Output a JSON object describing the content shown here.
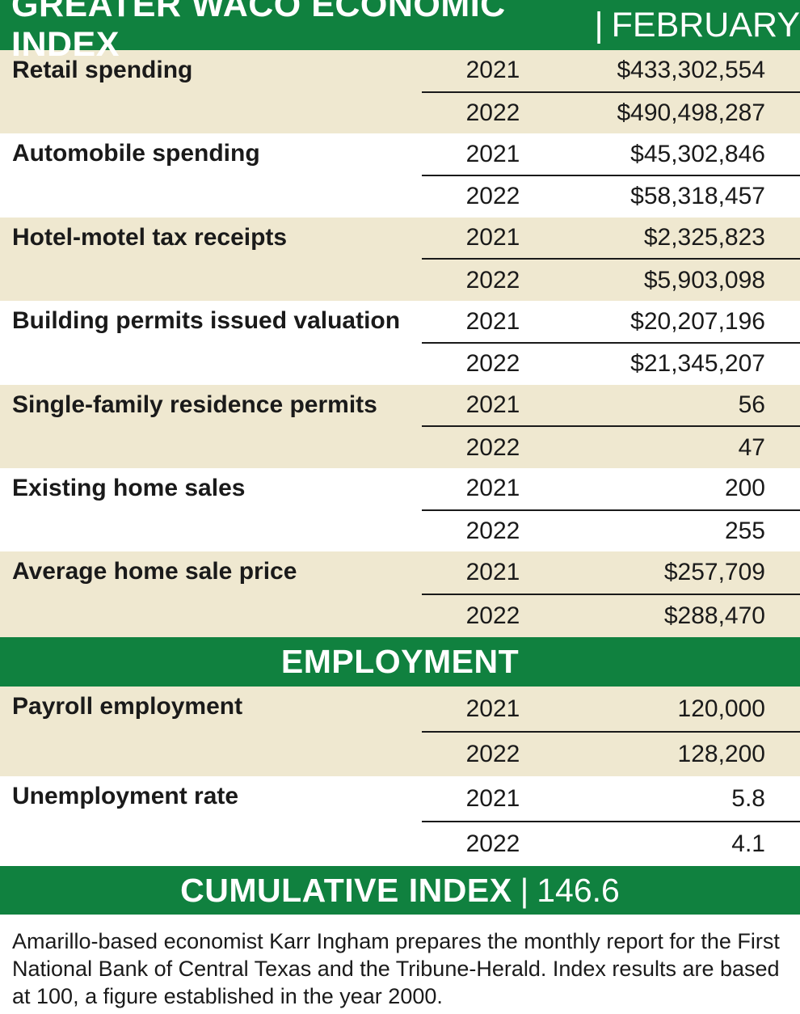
{
  "header": {
    "title": "GREATER WACO ECONOMIC INDEX",
    "separator": "|",
    "month": "FEBRUARY"
  },
  "indicators": [
    {
      "label": "Retail spending",
      "rows": [
        {
          "year": "2021",
          "value": "$433,302,554"
        },
        {
          "year": "2022",
          "value": "$490,498,287"
        }
      ]
    },
    {
      "label": "Automobile spending",
      "rows": [
        {
          "year": "2021",
          "value": "$45,302,846"
        },
        {
          "year": "2022",
          "value": "$58,318,457"
        }
      ]
    },
    {
      "label": "Hotel-motel tax receipts",
      "rows": [
        {
          "year": "2021",
          "value": "$2,325,823"
        },
        {
          "year": "2022",
          "value": "$5,903,098"
        }
      ]
    },
    {
      "label": "Building permits issued valuation",
      "rows": [
        {
          "year": "2021",
          "value": "$20,207,196"
        },
        {
          "year": "2022",
          "value": "$21,345,207"
        }
      ]
    },
    {
      "label": "Single-family residence permits",
      "rows": [
        {
          "year": "2021",
          "value": "56"
        },
        {
          "year": "2022",
          "value": "47"
        }
      ]
    },
    {
      "label": "Existing home sales",
      "rows": [
        {
          "year": "2021",
          "value": "200"
        },
        {
          "year": "2022",
          "value": "255"
        }
      ]
    },
    {
      "label": "Average home sale price",
      "rows": [
        {
          "year": "2021",
          "value": "$257,709"
        },
        {
          "year": "2022",
          "value": "$288,470"
        }
      ]
    }
  ],
  "employment": {
    "heading": "EMPLOYMENT",
    "indicators": [
      {
        "label": "Payroll employment",
        "rows": [
          {
            "year": "2021",
            "value": "120,000"
          },
          {
            "year": "2022",
            "value": "128,200"
          }
        ]
      },
      {
        "label": "Unemployment rate",
        "rows": [
          {
            "year": "2021",
            "value": "5.8"
          },
          {
            "year": "2022",
            "value": "4.1"
          }
        ]
      }
    ]
  },
  "cumulative": {
    "label": "CUMULATIVE INDEX",
    "separator": "|",
    "value": "146.6"
  },
  "footnote": "Amarillo-based economist Karr Ingham prepares the monthly report for the First National Bank of Central Texas and the Tribune-Herald. Index results are based at 100, a figure established in the year 2000.",
  "colors": {
    "banner_green": "#10813f",
    "row_tan": "#efe8d0",
    "row_white": "#ffffff"
  }
}
